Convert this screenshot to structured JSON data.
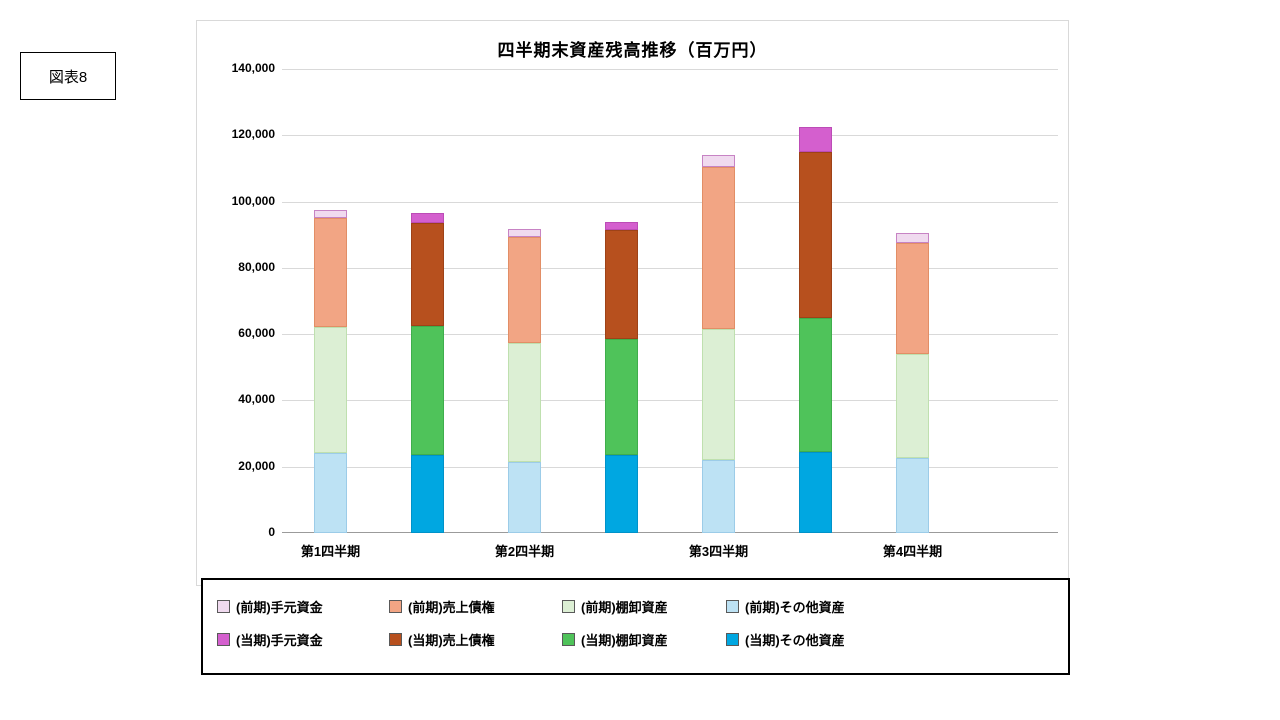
{
  "figure": {
    "label": "図表8"
  },
  "chart_data": {
    "type": "bar",
    "stacked": true,
    "title": "四半期末資産残高推移（百万円）",
    "categories": [
      "第1四半期",
      "第2四半期",
      "第3四半期",
      "第4四半期"
    ],
    "ylim": [
      0,
      140000
    ],
    "ytick_step": 20000,
    "ytick_labels": [
      "0",
      "20,000",
      "40,000",
      "60,000",
      "80,000",
      "100,000",
      "120,000",
      "140,000"
    ],
    "grid": true,
    "legend_position": "bottom",
    "groups": [
      {
        "name": "前期",
        "series": [
          {
            "name": "(前期)その他資産",
            "color": "#BDE2F4",
            "border": "#9CCCE8",
            "values": [
              24000,
              21500,
              22000,
              22500
            ]
          },
          {
            "name": "(前期)棚卸資産",
            "color": "#DCEFD4",
            "border": "#BFE0AF",
            "values": [
              38000,
              36000,
              39500,
              31500
            ]
          },
          {
            "name": "(前期)売上債権",
            "color": "#F2A584",
            "border": "#E28E66",
            "values": [
              33000,
              32000,
              49000,
              33500
            ]
          },
          {
            "name": "(前期)手元資金",
            "color": "#F0DAEF",
            "border": "#C783C4",
            "values": [
              2500,
              2500,
              3500,
              3000
            ]
          }
        ]
      },
      {
        "name": "当期",
        "series": [
          {
            "name": "(当期)その他資産",
            "color": "#00A7E1",
            "border": "#0092C9",
            "values": [
              23500,
              23500,
              24500,
              0
            ]
          },
          {
            "name": "(当期)棚卸資産",
            "color": "#4FC35A",
            "border": "#3FAE4C",
            "values": [
              39000,
              35000,
              40500,
              0
            ]
          },
          {
            "name": "(当期)売上債権",
            "color": "#B7501E",
            "border": "#9E4217",
            "values": [
              31000,
              33000,
              50000,
              0
            ]
          },
          {
            "name": "(当期)手元資金",
            "color": "#D45FCE",
            "border": "#BC4CB6",
            "values": [
              3000,
              2500,
              7500,
              0
            ]
          }
        ]
      }
    ],
    "legend": [
      {
        "label": "(前期)手元資金",
        "color": "#F0DAEF"
      },
      {
        "label": "(前期)売上債権",
        "color": "#F2A584"
      },
      {
        "label": "(前期)棚卸資産",
        "color": "#DCEFD4"
      },
      {
        "label": "(前期)その他資産",
        "color": "#BDE2F4"
      },
      {
        "label": "(当期)手元資金",
        "color": "#D45FCE"
      },
      {
        "label": "(当期)売上債権",
        "color": "#B7501E"
      },
      {
        "label": "(当期)棚卸資産",
        "color": "#4FC35A"
      },
      {
        "label": "(当期)その他資産",
        "color": "#00A7E1"
      }
    ]
  }
}
